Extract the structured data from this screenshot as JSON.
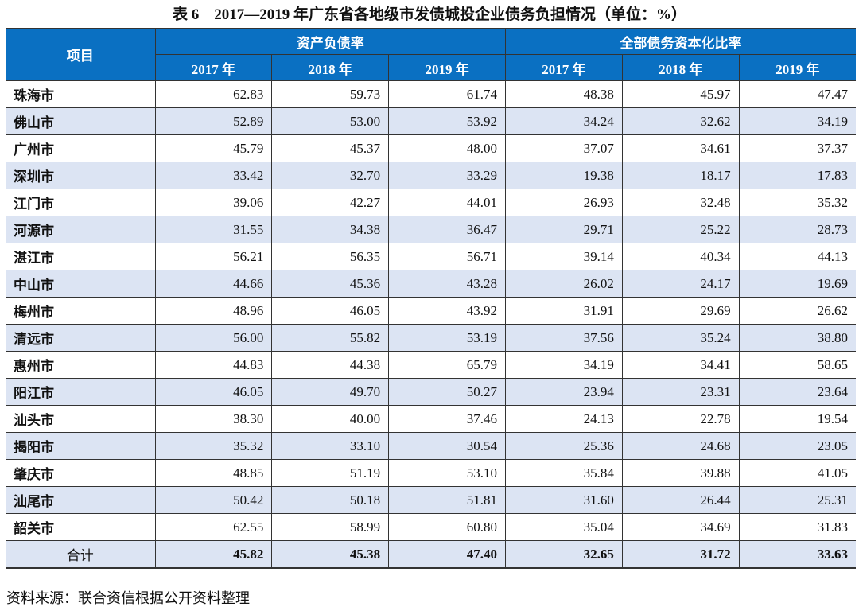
{
  "title": "表 6　2017—2019 年广东省各地级市发债城投企业债务负担情况（单位：%）",
  "header": {
    "item": "项目",
    "group1": "资产负债率",
    "group2": "全部债务资本化比率",
    "years": [
      "2017 年",
      "2018 年",
      "2019 年",
      "2017 年",
      "2018 年",
      "2019 年"
    ]
  },
  "rows": [
    {
      "name": "珠海市",
      "v": [
        "62.83",
        "59.73",
        "61.74",
        "48.38",
        "45.97",
        "47.47"
      ]
    },
    {
      "name": "佛山市",
      "v": [
        "52.89",
        "53.00",
        "53.92",
        "34.24",
        "32.62",
        "34.19"
      ]
    },
    {
      "name": "广州市",
      "v": [
        "45.79",
        "45.37",
        "48.00",
        "37.07",
        "34.61",
        "37.37"
      ]
    },
    {
      "name": "深圳市",
      "v": [
        "33.42",
        "32.70",
        "33.29",
        "19.38",
        "18.17",
        "17.83"
      ]
    },
    {
      "name": "江门市",
      "v": [
        "39.06",
        "42.27",
        "44.01",
        "26.93",
        "32.48",
        "35.32"
      ]
    },
    {
      "name": "河源市",
      "v": [
        "31.55",
        "34.38",
        "36.47",
        "29.71",
        "25.22",
        "28.73"
      ]
    },
    {
      "name": "湛江市",
      "v": [
        "56.21",
        "56.35",
        "56.71",
        "39.14",
        "40.34",
        "44.13"
      ]
    },
    {
      "name": "中山市",
      "v": [
        "44.66",
        "45.36",
        "43.28",
        "26.02",
        "24.17",
        "19.69"
      ]
    },
    {
      "name": "梅州市",
      "v": [
        "48.96",
        "46.05",
        "43.92",
        "31.91",
        "29.69",
        "26.62"
      ]
    },
    {
      "name": "清远市",
      "v": [
        "56.00",
        "55.82",
        "53.19",
        "37.56",
        "35.24",
        "38.80"
      ]
    },
    {
      "name": "惠州市",
      "v": [
        "44.83",
        "44.38",
        "65.79",
        "34.19",
        "34.41",
        "58.65"
      ]
    },
    {
      "name": "阳江市",
      "v": [
        "46.05",
        "49.70",
        "50.27",
        "23.94",
        "23.31",
        "23.64"
      ]
    },
    {
      "name": "汕头市",
      "v": [
        "38.30",
        "40.00",
        "37.46",
        "24.13",
        "22.78",
        "19.54"
      ]
    },
    {
      "name": "揭阳市",
      "v": [
        "35.32",
        "33.10",
        "30.54",
        "25.36",
        "24.68",
        "23.05"
      ]
    },
    {
      "name": "肇庆市",
      "v": [
        "48.85",
        "51.19",
        "53.10",
        "35.84",
        "39.88",
        "41.05"
      ]
    },
    {
      "name": "汕尾市",
      "v": [
        "50.42",
        "50.18",
        "51.81",
        "31.60",
        "26.44",
        "25.31"
      ]
    },
    {
      "name": "韶关市",
      "v": [
        "62.55",
        "58.99",
        "60.80",
        "35.04",
        "34.69",
        "31.83"
      ]
    }
  ],
  "total": {
    "name": "合计",
    "v": [
      "45.82",
      "45.38",
      "47.40",
      "32.65",
      "31.72",
      "33.63"
    ]
  },
  "source": "资料来源：联合资信根据公开资料整理",
  "colors": {
    "header": "#0A70C2",
    "alt_row": "#DCE4F3"
  }
}
